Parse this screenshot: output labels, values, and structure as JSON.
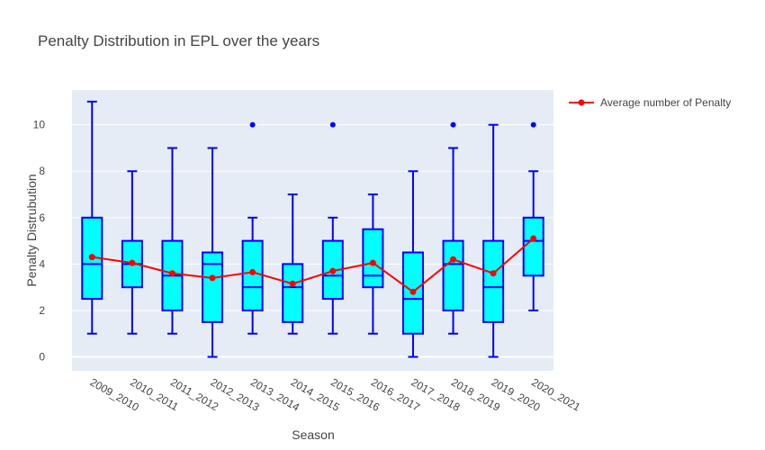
{
  "chart_data": {
    "type": "box",
    "title": "Penalty Distribution in EPL over the years",
    "xlabel": "Season",
    "ylabel": "Penalty Distrubution",
    "ylim": [
      -0.6,
      11.5
    ],
    "yticks": [
      0,
      2,
      4,
      6,
      8,
      10
    ],
    "grid": true,
    "legend_position": "top-right",
    "categories": [
      "2009_2010",
      "2010_2011",
      "2011_2012",
      "2012_2013",
      "2013_2014",
      "2014_2015",
      "2015_2016",
      "2016_2017",
      "2017_2018",
      "2018_2019",
      "2019_2020",
      "2020_2021"
    ],
    "boxes": [
      {
        "min": 1,
        "q1": 2.5,
        "median": 4,
        "q3": 6,
        "max": 11,
        "outliers": []
      },
      {
        "min": 1,
        "q1": 3,
        "median": 4,
        "q3": 5,
        "max": 8,
        "outliers": []
      },
      {
        "min": 1,
        "q1": 2,
        "median": 3.5,
        "q3": 5,
        "max": 9,
        "outliers": []
      },
      {
        "min": 0,
        "q1": 1.5,
        "median": 4,
        "q3": 4.5,
        "max": 9,
        "outliers": []
      },
      {
        "min": 1,
        "q1": 2,
        "median": 3,
        "q3": 5,
        "max": 6,
        "outliers": [
          10
        ]
      },
      {
        "min": 1,
        "q1": 1.5,
        "median": 3,
        "q3": 4,
        "max": 7,
        "outliers": []
      },
      {
        "min": 1,
        "q1": 2.5,
        "median": 3.5,
        "q3": 5,
        "max": 6,
        "outliers": [
          10
        ]
      },
      {
        "min": 1,
        "q1": 3,
        "median": 3.5,
        "q3": 5.5,
        "max": 7,
        "outliers": []
      },
      {
        "min": 0,
        "q1": 1,
        "median": 2.5,
        "q3": 4.5,
        "max": 8,
        "outliers": []
      },
      {
        "min": 1,
        "q1": 2,
        "median": 4,
        "q3": 5,
        "max": 9,
        "outliers": [
          10
        ]
      },
      {
        "min": 0,
        "q1": 1.5,
        "median": 3,
        "q3": 5,
        "max": 10,
        "outliers": []
      },
      {
        "min": 2,
        "q1": 3.5,
        "median": 5,
        "q3": 6,
        "max": 8,
        "outliers": [
          10
        ]
      }
    ],
    "series": [
      {
        "name": "Average number of Penalty",
        "type": "line",
        "values": [
          4.3,
          4.05,
          3.6,
          3.4,
          3.65,
          3.15,
          3.7,
          4.05,
          2.8,
          4.2,
          3.6,
          5.1
        ]
      }
    ],
    "colors": {
      "box_fill": "#00ffff",
      "box_line": "#0000ff",
      "line": "#ff0000",
      "plot_bg": "#e5ecf6",
      "grid": "#ffffff"
    }
  }
}
